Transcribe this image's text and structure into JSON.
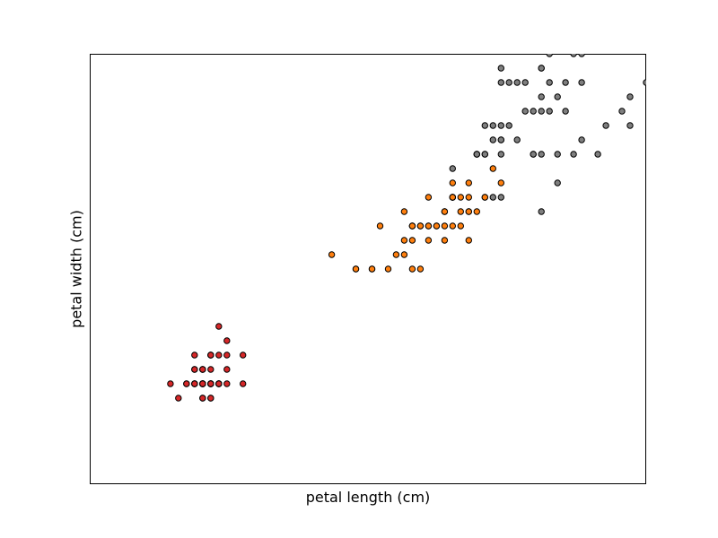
{
  "chart_data": {
    "type": "scatter",
    "title": "",
    "xlabel": "petal length (cm)",
    "ylabel": "petal width (cm)",
    "xlim": [
      0.0,
      6.9
    ],
    "ylim": [
      -0.5,
      2.5
    ],
    "show_ticks": false,
    "grid": false,
    "point_edge_color": "#000000",
    "series": [
      {
        "color": "#d62728",
        "points": [
          [
            1.4,
            0.2
          ],
          [
            1.4,
            0.2
          ],
          [
            1.3,
            0.2
          ],
          [
            1.5,
            0.2
          ],
          [
            1.4,
            0.2
          ],
          [
            1.7,
            0.4
          ],
          [
            1.4,
            0.3
          ],
          [
            1.5,
            0.2
          ],
          [
            1.4,
            0.2
          ],
          [
            1.5,
            0.1
          ],
          [
            1.5,
            0.2
          ],
          [
            1.6,
            0.2
          ],
          [
            1.4,
            0.1
          ],
          [
            1.1,
            0.1
          ],
          [
            1.2,
            0.2
          ],
          [
            1.5,
            0.4
          ],
          [
            1.3,
            0.4
          ],
          [
            1.4,
            0.3
          ],
          [
            1.7,
            0.3
          ],
          [
            1.5,
            0.3
          ],
          [
            1.7,
            0.2
          ],
          [
            1.5,
            0.4
          ],
          [
            1.0,
            0.2
          ],
          [
            1.7,
            0.5
          ],
          [
            1.9,
            0.2
          ],
          [
            1.6,
            0.2
          ],
          [
            1.6,
            0.4
          ],
          [
            1.5,
            0.2
          ],
          [
            1.4,
            0.2
          ],
          [
            1.6,
            0.2
          ],
          [
            1.6,
            0.2
          ],
          [
            1.5,
            0.4
          ],
          [
            1.5,
            0.1
          ],
          [
            1.4,
            0.2
          ],
          [
            1.5,
            0.2
          ],
          [
            1.2,
            0.2
          ],
          [
            1.3,
            0.2
          ],
          [
            1.4,
            0.1
          ],
          [
            1.3,
            0.2
          ],
          [
            1.5,
            0.2
          ],
          [
            1.3,
            0.3
          ],
          [
            1.3,
            0.3
          ],
          [
            1.3,
            0.2
          ],
          [
            1.6,
            0.6
          ],
          [
            1.9,
            0.4
          ],
          [
            1.4,
            0.3
          ],
          [
            1.6,
            0.2
          ],
          [
            1.4,
            0.2
          ],
          [
            1.5,
            0.2
          ],
          [
            1.4,
            0.2
          ]
        ]
      },
      {
        "color": "#ff7f0e",
        "points": [
          [
            4.7,
            1.4
          ],
          [
            4.5,
            1.5
          ],
          [
            4.9,
            1.5
          ],
          [
            4.0,
            1.3
          ],
          [
            4.6,
            1.5
          ],
          [
            4.5,
            1.3
          ],
          [
            4.7,
            1.6
          ],
          [
            3.3,
            1.0
          ],
          [
            4.6,
            1.3
          ],
          [
            3.9,
            1.4
          ],
          [
            3.5,
            1.0
          ],
          [
            4.2,
            1.5
          ],
          [
            4.0,
            1.0
          ],
          [
            4.7,
            1.4
          ],
          [
            3.6,
            1.3
          ],
          [
            4.4,
            1.4
          ],
          [
            4.5,
            1.5
          ],
          [
            4.1,
            1.0
          ],
          [
            4.5,
            1.5
          ],
          [
            3.9,
            1.1
          ],
          [
            4.8,
            1.8
          ],
          [
            4.0,
            1.3
          ],
          [
            4.9,
            1.5
          ],
          [
            4.7,
            1.2
          ],
          [
            4.3,
            1.3
          ],
          [
            4.4,
            1.4
          ],
          [
            4.8,
            1.4
          ],
          [
            5.0,
            1.7
          ],
          [
            4.5,
            1.5
          ],
          [
            3.5,
            1.0
          ],
          [
            3.8,
            1.1
          ],
          [
            3.7,
            1.0
          ],
          [
            3.9,
            1.2
          ],
          [
            5.1,
            1.6
          ],
          [
            4.5,
            1.5
          ],
          [
            4.5,
            1.6
          ],
          [
            4.7,
            1.5
          ],
          [
            4.4,
            1.3
          ],
          [
            4.1,
            1.3
          ],
          [
            4.0,
            1.3
          ],
          [
            4.4,
            1.2
          ],
          [
            4.6,
            1.4
          ],
          [
            4.0,
            1.2
          ],
          [
            3.3,
            1.0
          ],
          [
            4.2,
            1.3
          ],
          [
            4.2,
            1.2
          ],
          [
            4.2,
            1.3
          ],
          [
            4.3,
            1.3
          ],
          [
            3.0,
            1.1
          ],
          [
            4.1,
            1.3
          ]
        ]
      },
      {
        "color": "#7f7f7f",
        "points": [
          [
            6.0,
            2.5
          ],
          [
            5.1,
            1.9
          ],
          [
            5.9,
            2.1
          ],
          [
            5.6,
            1.8
          ],
          [
            5.8,
            2.2
          ],
          [
            6.6,
            2.1
          ],
          [
            4.5,
            1.7
          ],
          [
            6.3,
            1.8
          ],
          [
            5.8,
            1.8
          ],
          [
            6.1,
            2.5
          ],
          [
            5.1,
            2.0
          ],
          [
            5.3,
            1.9
          ],
          [
            5.5,
            2.1
          ],
          [
            5.0,
            2.0
          ],
          [
            5.1,
            2.4
          ],
          [
            5.3,
            2.3
          ],
          [
            5.5,
            1.8
          ],
          [
            6.7,
            2.2
          ],
          [
            6.9,
            2.3
          ],
          [
            5.0,
            1.5
          ],
          [
            5.7,
            2.3
          ],
          [
            4.9,
            2.0
          ],
          [
            6.7,
            2.0
          ],
          [
            4.9,
            1.8
          ],
          [
            5.7,
            2.1
          ],
          [
            6.0,
            1.8
          ],
          [
            4.8,
            1.8
          ],
          [
            4.9,
            1.8
          ],
          [
            5.6,
            2.1
          ],
          [
            5.8,
            1.6
          ],
          [
            6.1,
            1.9
          ],
          [
            6.4,
            2.0
          ],
          [
            5.6,
            2.2
          ],
          [
            5.1,
            1.5
          ],
          [
            5.6,
            1.4
          ],
          [
            6.1,
            2.3
          ],
          [
            5.6,
            2.4
          ],
          [
            5.5,
            1.8
          ],
          [
            4.8,
            1.8
          ],
          [
            5.4,
            2.1
          ],
          [
            5.6,
            2.4
          ],
          [
            5.1,
            2.3
          ],
          [
            5.1,
            1.9
          ],
          [
            5.9,
            2.3
          ],
          [
            5.7,
            2.5
          ],
          [
            5.2,
            2.3
          ],
          [
            5.0,
            1.9
          ],
          [
            5.2,
            2.0
          ],
          [
            5.4,
            2.3
          ],
          [
            5.1,
            1.8
          ]
        ]
      }
    ]
  }
}
